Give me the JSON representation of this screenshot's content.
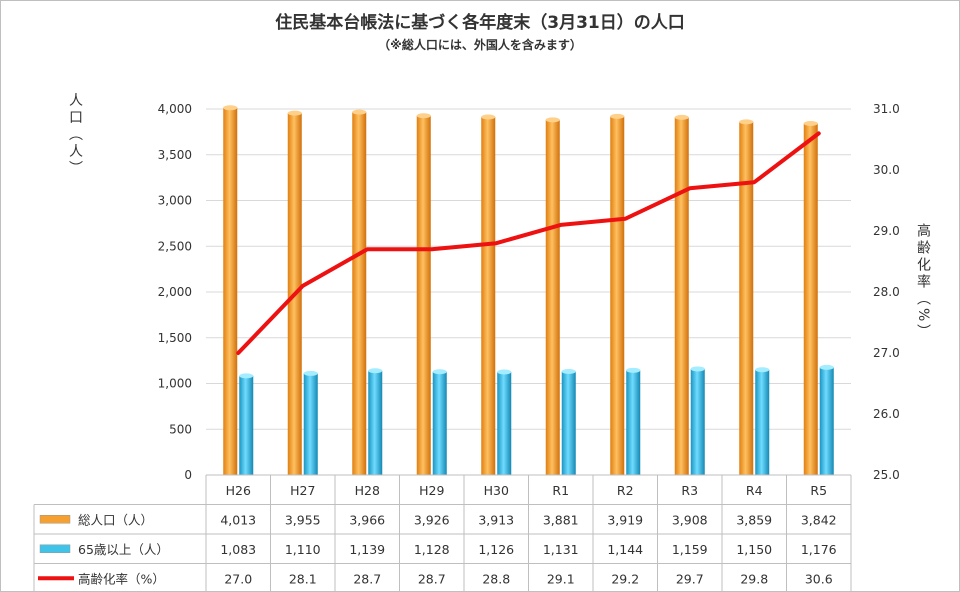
{
  "chart_data": {
    "type": "bar",
    "title": "住民基本台帳法に基づく各年度末（3月31日）の人口",
    "subtitle": "（※総人口には、外国人を含みます）",
    "categories": [
      "H26",
      "H27",
      "H28",
      "H29",
      "H30",
      "R1",
      "R2",
      "R3",
      "R4",
      "R5"
    ],
    "series": [
      {
        "name": "総人口（人）",
        "kind": "bar",
        "axis": "left",
        "color": "#f5a030",
        "values": [
          4013,
          3955,
          3966,
          3926,
          3913,
          3881,
          3919,
          3908,
          3859,
          3842
        ],
        "labels": [
          "4,013",
          "3,955",
          "3,966",
          "3,926",
          "3,913",
          "3,881",
          "3,919",
          "3,908",
          "3,859",
          "3,842"
        ]
      },
      {
        "name": "65歳以上（人）",
        "kind": "bar",
        "axis": "left",
        "color": "#3fc3e8",
        "values": [
          1083,
          1110,
          1139,
          1128,
          1126,
          1131,
          1144,
          1159,
          1150,
          1176
        ],
        "labels": [
          "1,083",
          "1,110",
          "1,139",
          "1,128",
          "1,126",
          "1,131",
          "1,144",
          "1,159",
          "1,150",
          "1,176"
        ]
      },
      {
        "name": "高齢化率（%）",
        "kind": "line",
        "axis": "right",
        "color": "#ee1111",
        "values": [
          27.0,
          28.1,
          28.7,
          28.7,
          28.8,
          29.1,
          29.2,
          29.7,
          29.8,
          30.6
        ],
        "labels": [
          "27.0",
          "28.1",
          "28.7",
          "28.7",
          "28.8",
          "29.1",
          "29.2",
          "29.7",
          "29.8",
          "30.6"
        ]
      }
    ],
    "y_left": {
      "label": "人口（人）",
      "range": [
        0,
        4000
      ],
      "ticks": [
        0,
        500,
        1000,
        1500,
        2000,
        2500,
        3000,
        3500,
        4000
      ],
      "tick_labels": [
        "0",
        "500",
        "1,000",
        "1,500",
        "2,000",
        "2,500",
        "3,000",
        "3,500",
        "4,000"
      ]
    },
    "y_right": {
      "label": "高齢化率（%）",
      "range": [
        25.0,
        31.0
      ],
      "ticks": [
        25,
        26,
        27,
        28,
        29,
        30,
        31
      ],
      "tick_labels": [
        "25.0",
        "26.0",
        "27.0",
        "28.0",
        "29.0",
        "30.0",
        "31.0"
      ]
    },
    "grid": true,
    "legend": "data-table-below"
  }
}
